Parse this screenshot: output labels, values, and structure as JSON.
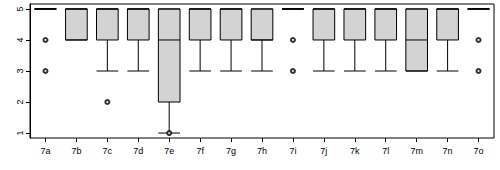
{
  "chart_data": {
    "type": "boxplot",
    "categories": [
      "7a",
      "7b",
      "7c",
      "7d",
      "7e",
      "7f",
      "7g",
      "7h",
      "7i",
      "7j",
      "7k",
      "7l",
      "7m",
      "7n",
      "7o"
    ],
    "values": [
      [
        5,
        5,
        5,
        5,
        5
      ],
      [
        4,
        4,
        5,
        5,
        5
      ],
      [
        3,
        4,
        5,
        5,
        5
      ],
      [
        3,
        4,
        5,
        5,
        5
      ],
      [
        1,
        2,
        4,
        5,
        5
      ],
      [
        3,
        4,
        5,
        5,
        5
      ],
      [
        3,
        4,
        5,
        5,
        5
      ],
      [
        3,
        4,
        4,
        5,
        5
      ],
      [
        5,
        5,
        5,
        5,
        5
      ],
      [
        3,
        4,
        5,
        5,
        5
      ],
      [
        3,
        4,
        5,
        5,
        5
      ],
      [
        3,
        4,
        5,
        5,
        5
      ],
      [
        3,
        3,
        4,
        5,
        5
      ],
      [
        3,
        4,
        5,
        5,
        5
      ],
      [
        5,
        5,
        5,
        5,
        5
      ]
    ],
    "outliers": [
      [
        4,
        3
      ],
      [],
      [
        2
      ],
      [],
      [
        1
      ],
      [],
      [],
      [],
      [
        4,
        3
      ],
      [],
      [],
      [],
      [],
      [],
      [
        4,
        3
      ]
    ],
    "color": "#d3d3d3",
    "ylim": [
      0.84,
      5.16
    ],
    "yticks": [
      1,
      2,
      3,
      4,
      5
    ],
    "grid": false
  }
}
